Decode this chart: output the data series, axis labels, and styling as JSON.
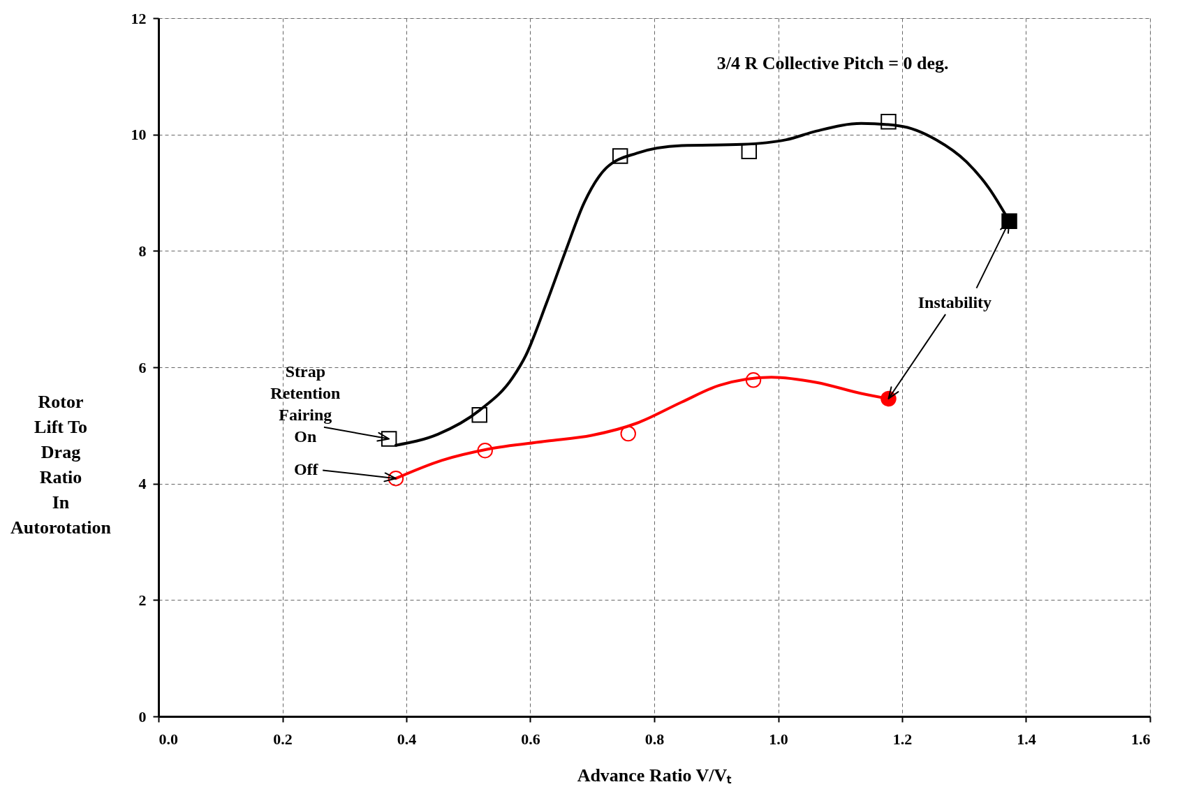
{
  "chart_data": {
    "type": "line",
    "xlabel": "Advance Ratio   V/Vₜ",
    "ylabel": "Rotor\nLift To\nDrag\nRatio\nIn\nAutorotation",
    "xlim": [
      0,
      1.6
    ],
    "ylim": [
      0,
      12
    ],
    "xticks": [
      {
        "value": 0,
        "label": "0.0"
      },
      0.2,
      0.4,
      0.6,
      0.8,
      {
        "value": 1,
        "label": "1.0"
      },
      1.2,
      1.4,
      1.6
    ],
    "yticks": [
      0,
      2,
      4,
      6,
      8,
      10,
      12
    ],
    "grid": true,
    "line_style": "solid",
    "series": [
      {
        "color": "#000000",
        "x": [
          0.383,
          0.451,
          0.518,
          0.572,
          0.593,
          0.626,
          0.657,
          0.687,
          0.723,
          0.772,
          0.844,
          0.941,
          1.013,
          1.062,
          1.134,
          1.195,
          1.255,
          1.304,
          1.34,
          1.373
        ],
        "values": [
          4.66,
          4.85,
          5.26,
          5.83,
          6.21,
          7.1,
          8.0,
          8.83,
          9.43,
          9.68,
          9.81,
          9.83,
          9.91,
          10.06,
          10.19,
          10.15,
          9.91,
          9.53,
          9.08,
          8.51
        ]
      },
      {
        "color": "#ff0000",
        "x": [
          0.383,
          0.457,
          0.53,
          0.626,
          0.699,
          0.772,
          0.844,
          0.905,
          0.989,
          1.062,
          1.134,
          1.178
        ],
        "values": [
          4.09,
          4.4,
          4.59,
          4.73,
          4.83,
          5.04,
          5.4,
          5.69,
          5.83,
          5.74,
          5.55,
          5.46
        ]
      },
      {
        "type": "scatter",
        "marker": "square",
        "color": "#000000",
        "x": [
          0.372,
          0.518,
          0.745,
          0.953,
          1.178,
          1.373
        ],
        "values": [
          4.77,
          5.18,
          9.63,
          9.71,
          10.22,
          8.51
        ]
      },
      {
        "type": "scatter",
        "marker": "circle",
        "color": "#ff0000",
        "x": [
          0.383,
          0.527,
          0.758,
          0.96,
          1.178
        ],
        "values": [
          4.09,
          4.57,
          4.86,
          5.78,
          5.46
        ]
      }
    ],
    "annotations": [
      "3/4 R Collective Pitch = 0 deg.",
      {
        "text": "Strap\nRetention\nFairing\nOn",
        "x": 0.372,
        "y": 4.77
      },
      {
        "text": "Off",
        "x": 0.383,
        "y": 4.09
      },
      {
        "text": "Instability",
        "x": 1.373,
        "y": 8.51
      }
    ]
  }
}
